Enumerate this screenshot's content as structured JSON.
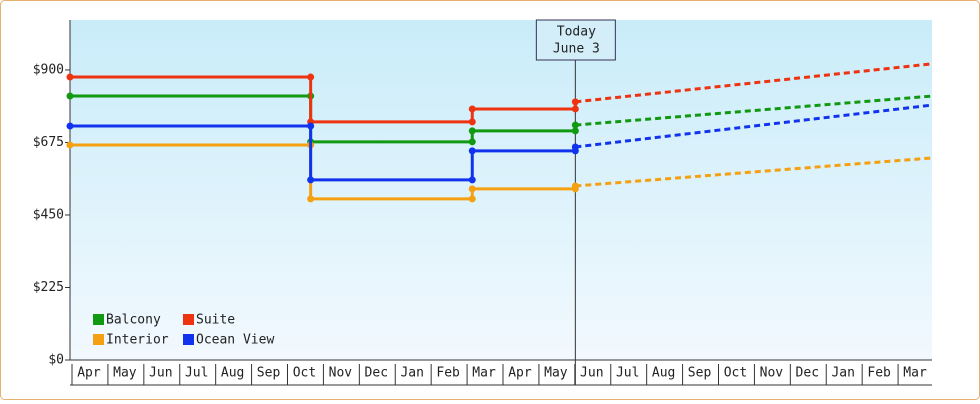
{
  "chart_data": {
    "type": "step",
    "categories": [
      "Apr",
      "May",
      "Jun",
      "Jul",
      "Aug",
      "Sep",
      "Oct",
      "Nov",
      "Dec",
      "Jan",
      "Feb",
      "Mar",
      "Apr",
      "May",
      "Jun",
      "Jul",
      "Aug",
      "Sep",
      "Oct",
      "Nov",
      "Dec",
      "Jan",
      "Feb",
      "Mar"
    ],
    "x": [
      0,
      6.7,
      11.2,
      14.07
    ],
    "forecast_x": 24,
    "xlim": [
      0,
      24
    ],
    "ylim": [
      0,
      1055
    ],
    "yticks": [
      {
        "value": 0,
        "label": "$0"
      },
      {
        "value": 225,
        "label": "$225"
      },
      {
        "value": 450,
        "label": "$450"
      },
      {
        "value": 675,
        "label": "$675"
      },
      {
        "value": 900,
        "label": "$900"
      }
    ],
    "today_label": [
      "Today",
      "June 3"
    ],
    "legend": "lower left",
    "forecast_style": "dashed",
    "series": [
      {
        "name": "Balcony",
        "color": "#119911",
        "values": [
          819,
          677,
          711,
          729
        ],
        "forecast": 819
      },
      {
        "name": "Suite",
        "color": "#ee3311",
        "values": [
          878,
          739,
          779,
          801
        ],
        "forecast": 919
      },
      {
        "name": "Interior",
        "color": "#f5a011",
        "values": [
          667,
          500,
          531,
          540
        ],
        "forecast": 627
      },
      {
        "name": "Ocean View",
        "color": "#1133ee",
        "values": [
          726,
          559,
          649,
          661
        ],
        "forecast": 791
      }
    ]
  }
}
